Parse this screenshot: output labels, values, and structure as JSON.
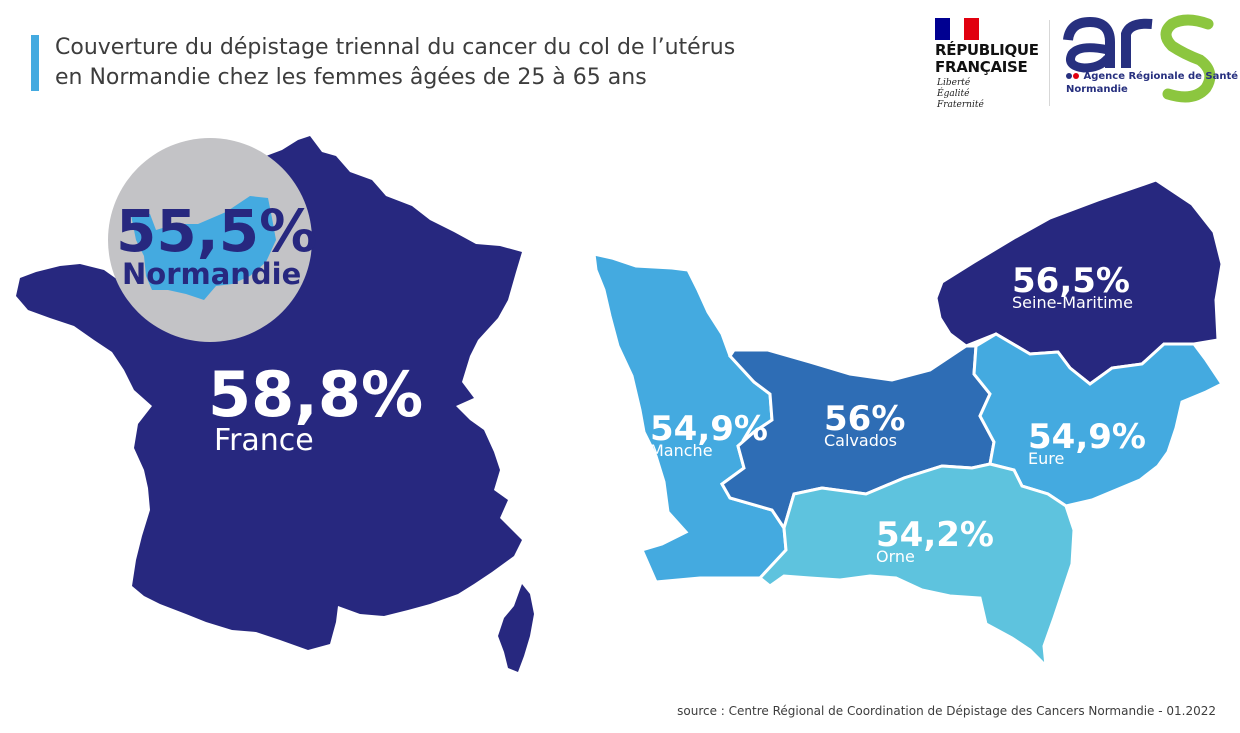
{
  "title": {
    "line1": "Couverture du dépistage triennal du cancer du col de l’utérus",
    "line2": "en Normandie chez les femmes âgées de 25 à 65 ans"
  },
  "logos": {
    "republique": {
      "name_line1": "RÉPUBLIQUE",
      "name_line2": "FRANÇAISE",
      "motto": [
        "Liberté",
        "Égalité",
        "Fraternité"
      ],
      "flag_colors": [
        "#000091",
        "#ffffff",
        "#e1000f"
      ]
    },
    "ars": {
      "wordmark": "ars",
      "subtitle": "Agence Régionale de Santé",
      "region": "Normandie",
      "colors": {
        "navy": "#27307f",
        "green": "#8cc63f"
      }
    }
  },
  "france": {
    "value": "58,8%",
    "label": "France",
    "color": "#27287f"
  },
  "normandie_inset": {
    "value": "55,5%",
    "label": "Normandie",
    "circle_color": "#c3c3c6",
    "shape_color": "#44aae0"
  },
  "regions": [
    {
      "id": "seine-maritime",
      "value": "56,5%",
      "label": "Seine-Maritime",
      "color": "#27287f"
    },
    {
      "id": "calvados",
      "value": "56%",
      "label": "Calvados",
      "color": "#2e6db5"
    },
    {
      "id": "eure",
      "value": "54,9%",
      "label": "Eure",
      "color": "#44aae0"
    },
    {
      "id": "manche",
      "value": "54,9%",
      "label": "Manche",
      "color": "#44aae0"
    },
    {
      "id": "orne",
      "value": "54,2%",
      "label": "Orne",
      "color": "#5ec3de"
    }
  ],
  "source": "source : Centre Régional de Coordination de Dépistage des Cancers Normandie - 01.2022"
}
